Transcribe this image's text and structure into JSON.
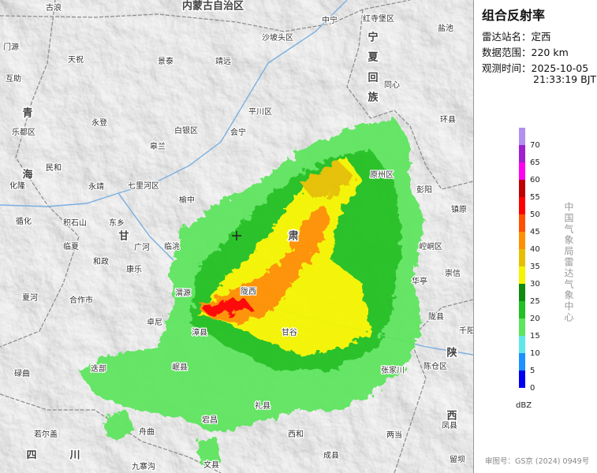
{
  "panel": {
    "title": "组合反射率",
    "info": [
      {
        "label": "雷达站名：",
        "value": "定西"
      },
      {
        "label": "数据范围：",
        "value": "220 km"
      },
      {
        "label": "观测时间：",
        "value": "2025-10-05",
        "value2": "21:33:19 BJT"
      }
    ],
    "legend": {
      "unit": "dBZ",
      "levels": [
        {
          "value": 0,
          "color": "#0000f0"
        },
        {
          "value": 5,
          "color": "#1e90ff"
        },
        {
          "value": 10,
          "color": "#5fe8ea"
        },
        {
          "value": 15,
          "color": "#5ee55e"
        },
        {
          "value": 20,
          "color": "#22c022"
        },
        {
          "value": 25,
          "color": "#0e8a0e"
        },
        {
          "value": 30,
          "color": "#f5f500"
        },
        {
          "value": 35,
          "color": "#e6c000"
        },
        {
          "value": 40,
          "color": "#ff9000"
        },
        {
          "value": 45,
          "color": "#ff5000"
        },
        {
          "value": 50,
          "color": "#ff0000"
        },
        {
          "value": 55,
          "color": "#c00000"
        },
        {
          "value": 60,
          "color": "#ff00f0"
        },
        {
          "value": 65,
          "color": "#a020d0"
        },
        {
          "value": 70,
          "color": "#b090f0"
        }
      ]
    },
    "credit": "中国气象局雷达气象中心",
    "approval": "审图号：GS京 (2024) 0949号"
  },
  "map": {
    "regions": [
      "内蒙古自治区",
      "青",
      "海",
      "甘",
      "肃",
      "宁",
      "夏",
      "回",
      "族",
      "陕",
      "西",
      "四",
      "川"
    ],
    "places": [
      "古浪",
      "门源",
      "天祝",
      "景泰",
      "靖远",
      "沙坡头区",
      "中宁",
      "红寺堡区",
      "盐池",
      "同心",
      "平川区",
      "互助",
      "永登",
      "白银区",
      "皋兰",
      "会宁",
      "环县",
      "乐都区",
      "民和",
      "化隆",
      "永靖",
      "七里河区",
      "榆中",
      "原州区",
      "彭阳",
      "镇原",
      "循化",
      "积石山",
      "东乡",
      "临夏",
      "广河",
      "临洮",
      "和政",
      "康乐",
      "崆峒区",
      "崇信",
      "夏河",
      "合作市",
      "陇西",
      "渭源",
      "华亭",
      "卓尼",
      "漳县",
      "甘谷",
      "陇县",
      "千阳",
      "碌曲",
      "迭部",
      "岷县",
      "张家川",
      "陈仓区",
      "凤县",
      "礼县",
      "宕昌",
      "舟曲",
      "若尔盖",
      "西和",
      "两当",
      "成县",
      "留坝",
      "九寨沟",
      "文县"
    ]
  }
}
